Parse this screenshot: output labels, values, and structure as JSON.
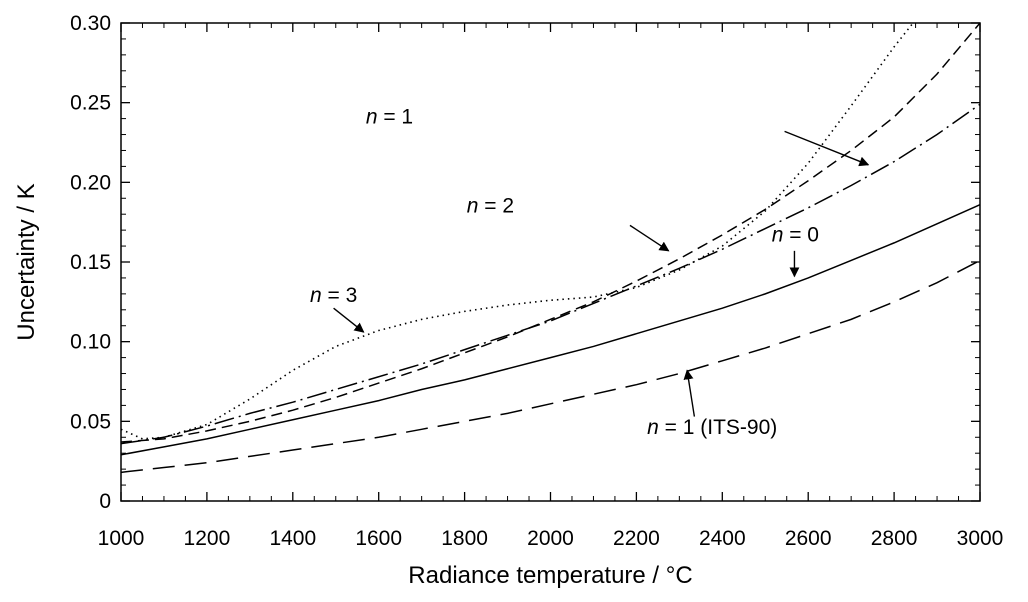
{
  "chart_data": {
    "type": "line",
    "title": "",
    "xlabel": "Radiance temperature / °C",
    "ylabel": "Uncertainty / K",
    "xlim": [
      1000,
      3000
    ],
    "ylim": [
      0,
      0.3
    ],
    "x_ticks": [
      1000,
      1200,
      1400,
      1600,
      1800,
      2000,
      2200,
      2400,
      2600,
      2800,
      3000
    ],
    "y_ticks": [
      0,
      0.05,
      0.1,
      0.15,
      0.2,
      0.25,
      0.3
    ],
    "x_tick_labels": [
      "1000",
      "1200",
      "1400",
      "1600",
      "1800",
      "2000",
      "2200",
      "2400",
      "2600",
      "2800",
      "3000"
    ],
    "y_tick_labels": [
      "0",
      "0.05",
      "0.10",
      "0.15",
      "0.20",
      "0.25",
      "0.30"
    ],
    "grid": false,
    "series": [
      {
        "name": "n = 0",
        "style": "solid",
        "x": [
          1000,
          1100,
          1200,
          1300,
          1400,
          1500,
          1600,
          1700,
          1800,
          1900,
          2000,
          2100,
          2200,
          2300,
          2400,
          2500,
          2600,
          2700,
          2800,
          2900,
          3000
        ],
        "y": [
          0.029,
          0.034,
          0.039,
          0.045,
          0.051,
          0.057,
          0.063,
          0.07,
          0.076,
          0.083,
          0.09,
          0.097,
          0.105,
          0.113,
          0.121,
          0.13,
          0.14,
          0.151,
          0.162,
          0.174,
          0.186
        ]
      },
      {
        "name": "n = 1",
        "style": "dashdot",
        "x": [
          1000,
          1100,
          1200,
          1300,
          1400,
          1500,
          1600,
          1700,
          1800,
          1900,
          2000,
          2100,
          2200,
          2300,
          2400,
          2500,
          2600,
          2700,
          2800,
          2900,
          3000
        ],
        "y": [
          0.036,
          0.04,
          0.047,
          0.055,
          0.062,
          0.07,
          0.078,
          0.086,
          0.095,
          0.104,
          0.113,
          0.124,
          0.135,
          0.146,
          0.158,
          0.171,
          0.184,
          0.198,
          0.213,
          0.23,
          0.249
        ]
      },
      {
        "name": "n = 2",
        "style": "dashed",
        "x": [
          1000,
          1100,
          1200,
          1300,
          1400,
          1500,
          1600,
          1700,
          1800,
          1900,
          2000,
          2100,
          2200,
          2300,
          2400,
          2500,
          2600,
          2700,
          2800,
          2900,
          3000
        ],
        "y": [
          0.037,
          0.039,
          0.044,
          0.05,
          0.057,
          0.065,
          0.074,
          0.083,
          0.093,
          0.103,
          0.114,
          0.125,
          0.138,
          0.152,
          0.167,
          0.183,
          0.201,
          0.22,
          0.241,
          0.268,
          0.3
        ]
      },
      {
        "name": "n = 3",
        "style": "dotted",
        "x": [
          1000,
          1050,
          1100,
          1200,
          1300,
          1400,
          1500,
          1600,
          1700,
          1800,
          1900,
          2000,
          2100,
          2200,
          2300,
          2400,
          2500,
          2600,
          2700,
          2800,
          2850
        ],
        "y": [
          0.045,
          0.039,
          0.04,
          0.048,
          0.064,
          0.082,
          0.097,
          0.107,
          0.114,
          0.119,
          0.123,
          0.126,
          0.128,
          0.134,
          0.145,
          0.16,
          0.182,
          0.212,
          0.248,
          0.285,
          0.302
        ]
      },
      {
        "name": "n = 1 (ITS-90)",
        "style": "longdash",
        "x": [
          1000,
          1100,
          1200,
          1300,
          1400,
          1500,
          1600,
          1700,
          1800,
          1900,
          2000,
          2100,
          2200,
          2300,
          2400,
          2500,
          2600,
          2700,
          2800,
          2900,
          3000
        ],
        "y": [
          0.018,
          0.021,
          0.024,
          0.028,
          0.032,
          0.036,
          0.04,
          0.045,
          0.05,
          0.055,
          0.061,
          0.067,
          0.073,
          0.08,
          0.088,
          0.096,
          0.105,
          0.114,
          0.125,
          0.137,
          0.151
        ]
      }
    ],
    "annotations": [
      {
        "var": "n",
        "rest": " = 1",
        "label_at": [
          1570,
          0.237
        ],
        "arrow_from": [
          2545,
          0.232
        ],
        "arrow_to": [
          2740,
          0.211
        ]
      },
      {
        "var": "n",
        "rest": " = 2",
        "label_at": [
          1805,
          0.181
        ],
        "arrow_from": [
          2185,
          0.173
        ],
        "arrow_to": [
          2275,
          0.157
        ]
      },
      {
        "var": "n",
        "rest": " = 3",
        "label_at": [
          1440,
          0.125
        ],
        "arrow_from": [
          1495,
          0.121
        ],
        "arrow_to": [
          1565,
          0.106
        ]
      },
      {
        "var": "n",
        "rest": " = 0",
        "label_at": [
          2515,
          0.163
        ],
        "arrow_from": [
          2568,
          0.157
        ],
        "arrow_to": [
          2568,
          0.141
        ]
      },
      {
        "var": "n",
        "rest": " = 1 (ITS-90)",
        "label_at": [
          2225,
          0.042
        ],
        "arrow_from": [
          2335,
          0.053
        ],
        "arrow_to": [
          2318,
          0.082
        ]
      }
    ]
  }
}
